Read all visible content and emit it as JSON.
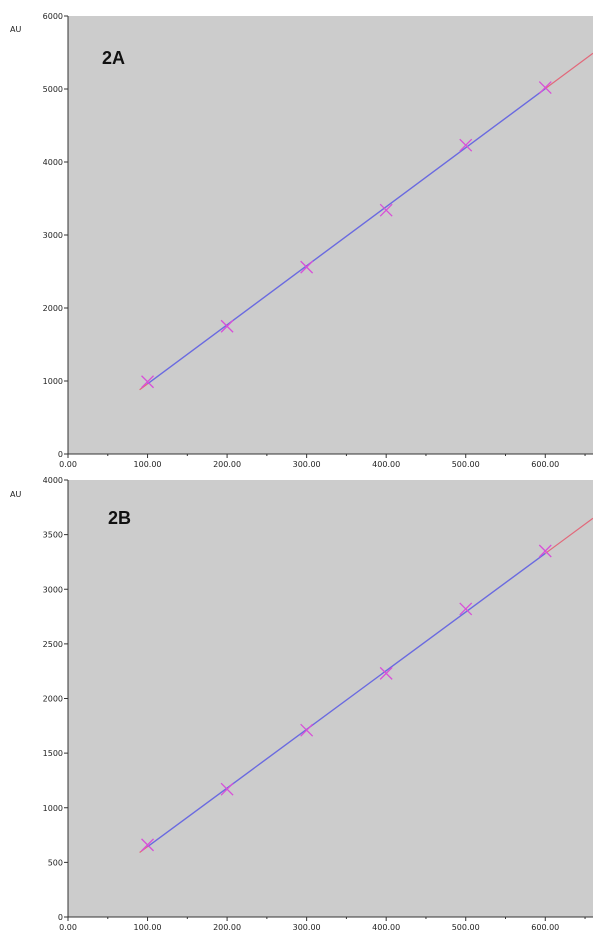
{
  "colors": {
    "plot_background": "#cccccc",
    "calibration_line": "#6a6ae0",
    "extrapolated_line": "#e2687a",
    "marker": "#d84fd8",
    "axis": "#333333"
  },
  "chart_data": [
    {
      "type": "scatter",
      "panel_label": "2A",
      "ylabel": "AU",
      "xlim": [
        0,
        660
      ],
      "ylim": [
        0,
        6000
      ],
      "x_ticks": [
        0,
        100,
        200,
        300,
        400,
        500,
        600
      ],
      "x_tick_labels": [
        "0.00",
        "100.00",
        "200.00",
        "300.00",
        "400.00",
        "500.00",
        "600.00"
      ],
      "y_ticks": [
        0,
        1000,
        2000,
        3000,
        4000,
        5000,
        6000
      ],
      "y_tick_labels": [
        "0",
        "1000",
        "2000",
        "3000",
        "4000",
        "5000",
        "6000"
      ],
      "grid": false,
      "points": [
        {
          "x": 100,
          "y": 990
        },
        {
          "x": 200,
          "y": 1750
        },
        {
          "x": 300,
          "y": 2560
        },
        {
          "x": 400,
          "y": 3340
        },
        {
          "x": 500,
          "y": 4230
        },
        {
          "x": 600,
          "y": 5020
        }
      ],
      "fit_line": {
        "x_start": 90,
        "y_start": 880,
        "x_end": 660,
        "y_end": 5490,
        "calibrated_range": [
          100,
          600
        ]
      }
    },
    {
      "type": "scatter",
      "panel_label": "2B",
      "ylabel": "AU",
      "xlim": [
        0,
        660
      ],
      "ylim": [
        0,
        4000
      ],
      "x_ticks": [
        0,
        100,
        200,
        300,
        400,
        500,
        600
      ],
      "x_tick_labels": [
        "0.00",
        "100.00",
        "200.00",
        "300.00",
        "400.00",
        "500.00",
        "600.00"
      ],
      "y_ticks": [
        0,
        500,
        1000,
        1500,
        2000,
        2500,
        3000,
        3500,
        4000
      ],
      "y_tick_labels": [
        "0",
        "500",
        "1000",
        "1500",
        "2000",
        "2500",
        "3000",
        "3500",
        "4000"
      ],
      "grid": false,
      "points": [
        {
          "x": 100,
          "y": 660
        },
        {
          "x": 200,
          "y": 1170
        },
        {
          "x": 300,
          "y": 1710
        },
        {
          "x": 400,
          "y": 2230
        },
        {
          "x": 500,
          "y": 2820
        },
        {
          "x": 600,
          "y": 3350
        }
      ],
      "fit_line": {
        "x_start": 90,
        "y_start": 590,
        "x_end": 660,
        "y_end": 3650,
        "calibrated_range": [
          100,
          600
        ]
      }
    }
  ]
}
